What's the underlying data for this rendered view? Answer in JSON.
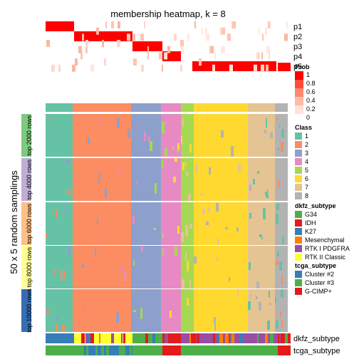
{
  "chart_data": {
    "type": "heatmap",
    "title": "membership heatmap, k = 8",
    "ylabel": "50 x 5 random samplings",
    "prob_rows": [
      "p1",
      "p2",
      "p3",
      "p4",
      "p5"
    ],
    "segments": [
      {
        "class": 1,
        "width": 38
      },
      {
        "class": 2,
        "width": 82
      },
      {
        "class": 3,
        "width": 42
      },
      {
        "class": 4,
        "width": 28
      },
      {
        "class": 5,
        "width": 18
      },
      {
        "class": 6,
        "width": 76
      },
      {
        "class": 7,
        "width": 38
      },
      {
        "class": 8,
        "width": 18
      }
    ],
    "row_groups": [
      {
        "label": "top 2000 rows",
        "color": "#7fc97f"
      },
      {
        "label": "top 4000 rows",
        "color": "#beaed4"
      },
      {
        "label": "top 6000 rows",
        "color": "#fdc086"
      },
      {
        "label": "top 8000 rows",
        "color": "#ffff99"
      },
      {
        "label": "top 10000 rows",
        "color": "#386cb0"
      }
    ],
    "prob_legend": {
      "title": "Prob",
      "ticks": [
        "1",
        "0.8",
        "0.6",
        "0.4",
        "0.2",
        "0"
      ],
      "colors": [
        "#ff0000",
        "#ff4a3a",
        "#ff8a70",
        "#ffbba6",
        "#ffe2d8",
        "#ffffff"
      ]
    },
    "class_legend": {
      "title": "Class",
      "items": [
        {
          "label": "1",
          "color": "#66c2a5"
        },
        {
          "label": "2",
          "color": "#fc8d62"
        },
        {
          "label": "3",
          "color": "#8da0cb"
        },
        {
          "label": "4",
          "color": "#e78ac3"
        },
        {
          "label": "5",
          "color": "#a6d854"
        },
        {
          "label": "6",
          "color": "#ffd92f"
        },
        {
          "label": "7",
          "color": "#e5c494"
        },
        {
          "label": "8",
          "color": "#b3b3b3"
        }
      ]
    },
    "dkfz_legend": {
      "title": "dkfz_subtype",
      "items": [
        {
          "label": "G34",
          "color": "#4daf4a"
        },
        {
          "label": "IDH",
          "color": "#e41a1c"
        },
        {
          "label": "K27",
          "color": "#377eb8"
        },
        {
          "label": "Mesenchymal",
          "color": "#ff7f00"
        },
        {
          "label": "RTK I PDGFRA",
          "color": "#984ea3"
        },
        {
          "label": "RTK II Classic",
          "color": "#ffff33"
        }
      ]
    },
    "tcga_legend": {
      "title": "tcga_subtype",
      "items": [
        {
          "label": "Cluster #2",
          "color": "#377eb8"
        },
        {
          "label": "Cluster #3",
          "color": "#4daf4a"
        },
        {
          "label": "G-CIMP+",
          "color": "#e41a1c"
        }
      ]
    },
    "bottom_tracks": [
      "dkfz_subtype",
      "tcga_subtype"
    ]
  }
}
